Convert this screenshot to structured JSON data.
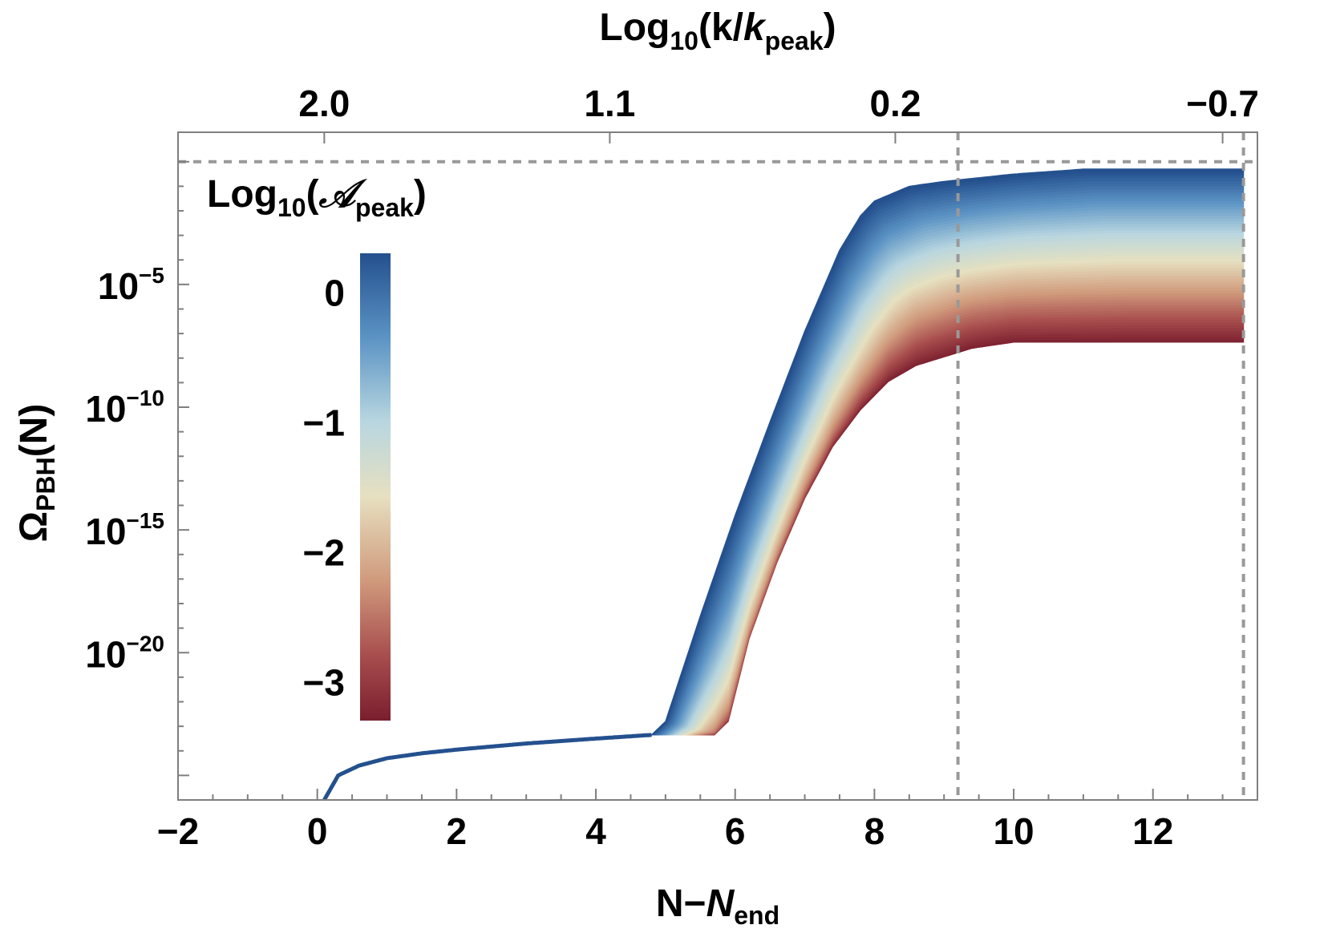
{
  "chart_data": {
    "type": "area",
    "title": "",
    "xlabel": {
      "main": "N−",
      "italic": "N",
      "sub": "end"
    },
    "ylabel": {
      "main": "Ω",
      "sub": "PBH",
      "rest": "(N)"
    },
    "top_xlabel": {
      "main": "Log",
      "sub1": "10",
      "mid": "(k/",
      "italic": "k",
      "sub2": "peak",
      "end": ")"
    },
    "xlim": [
      -2,
      13.5
    ],
    "ylim_log10": [
      -26,
      1.2
    ],
    "x_ticks": [
      -2,
      0,
      2,
      4,
      6,
      8,
      10,
      12
    ],
    "x_tick_labels": [
      "−2",
      "0",
      "2",
      "4",
      "6",
      "8",
      "10",
      "12"
    ],
    "y_ticks_log10": [
      -5,
      -10,
      -15,
      -20
    ],
    "y_tick_labels": [
      {
        "base": "10",
        "exp": "−5"
      },
      {
        "base": "10",
        "exp": "−10"
      },
      {
        "base": "10",
        "exp": "−15"
      },
      {
        "base": "10",
        "exp": "−20"
      }
    ],
    "top_ticks_x": [
      0.1,
      4.2,
      8.3,
      13.0
    ],
    "top_tick_labels": [
      "2.0",
      "1.1",
      "0.2",
      "−0.7"
    ],
    "reference_lines": {
      "horizontal_log10": 0,
      "vertical_x": [
        9.2,
        13.3
      ]
    },
    "colorbar": {
      "title": {
        "main": "Log",
        "sub": "10",
        "open": "(",
        "script": "𝒜",
        "sub2": "peak",
        "close": ")"
      },
      "range": [
        -3.3,
        0.3
      ],
      "ticks": [
        0,
        -1,
        -2,
        -3
      ],
      "tick_labels": [
        "0",
        "−1",
        "−2",
        "−3"
      ]
    },
    "series_description": "Family of curves Omega_PBH(N) colored by Log10(A_peak) from -3 (dark red) to 0.3 (dark blue)",
    "curve_family": {
      "common_segment": {
        "x": [
          0.1,
          0.3,
          0.6,
          1.0,
          1.5,
          2.0,
          3.0,
          4.0,
          4.8
        ],
        "log10_y": [
          -26,
          -25.0,
          -24.6,
          -24.3,
          -24.1,
          -23.95,
          -23.7,
          -23.5,
          -23.35
        ]
      },
      "top_curve": {
        "x": [
          4.8,
          5.0,
          5.5,
          6.0,
          6.5,
          7.0,
          7.5,
          7.8,
          8.0,
          8.5,
          9.0,
          10.0,
          11.0,
          13.3
        ],
        "log10_y": [
          -23.35,
          -22.8,
          -18.5,
          -14.4,
          -10.6,
          -6.9,
          -3.6,
          -2.2,
          -1.6,
          -1.0,
          -0.8,
          -0.5,
          -0.3,
          -0.3
        ]
      },
      "bottom_curve": {
        "x": [
          5.7,
          5.9,
          6.2,
          6.6,
          7.0,
          7.4,
          7.8,
          8.2,
          8.6,
          9.0,
          9.4,
          10.0,
          13.3
        ],
        "log10_y": [
          -23.35,
          -22.8,
          -19.4,
          -16.3,
          -13.7,
          -11.6,
          -10.1,
          -8.95,
          -8.3,
          -7.95,
          -7.6,
          -7.35,
          -7.35
        ]
      }
    },
    "colors": {
      "blue_end": "#24508e",
      "mid_light": "#e6e0c0",
      "red_end": "#7a1e2e",
      "axis": "#7f7f7f",
      "reference_line": "#999999"
    }
  }
}
